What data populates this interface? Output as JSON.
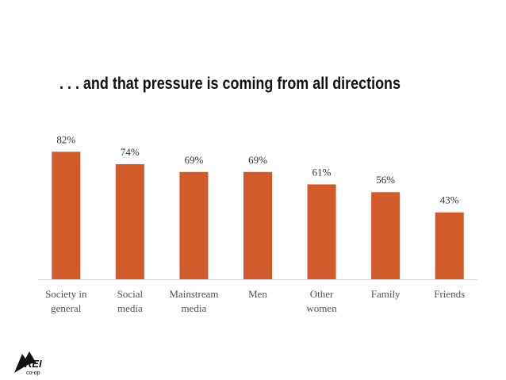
{
  "chart_data": {
    "type": "bar",
    "title": ". . . and that pressure is coming from all directions",
    "categories": [
      "Society in\ngeneral",
      "Social\nmedia",
      "Mainstream\nmedia",
      "Men",
      "Other\nwomen",
      "Family",
      "Friends"
    ],
    "values": [
      82,
      74,
      69,
      69,
      61,
      56,
      43
    ],
    "value_labels": [
      "82%",
      "74%",
      "69%",
      "69%",
      "61%",
      "56%",
      "43%"
    ],
    "color": "#d05a29",
    "ylim": [
      0,
      100
    ]
  },
  "logo": {
    "name": "REI",
    "sub": "co-op"
  }
}
